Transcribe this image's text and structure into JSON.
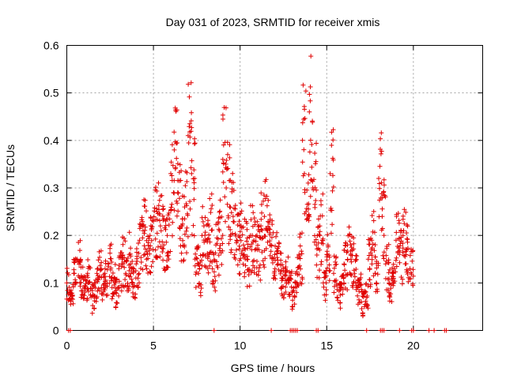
{
  "chart_data": {
    "type": "scatter",
    "title": "Day 031 of 2023, SRMTID for receiver xmis",
    "xlabel": "GPS time / hours",
    "ylabel": "SRMTID / TECUs",
    "xlim": [
      0,
      24
    ],
    "ylim": [
      0,
      0.6
    ],
    "xticks": [
      0,
      5,
      10,
      15,
      20
    ],
    "yticks": [
      0,
      0.1,
      0.2,
      0.3,
      0.4,
      0.5,
      0.6
    ],
    "xtick_labels": [
      "0",
      "5",
      "10",
      "15",
      "20"
    ],
    "ytick_labels": [
      "0",
      "0.1",
      "0.2",
      "0.3",
      "0.4",
      "0.5",
      "0.6"
    ],
    "grid": true,
    "marker": "+",
    "color": "#e00000",
    "points_description": "dense scatter of SRMTID samples; series below are representative envelopes (hour, TECU)",
    "series": [
      {
        "name": "SRMTID",
        "x": [
          0.0,
          0.2,
          0.4,
          0.6,
          0.8,
          1.0,
          1.2,
          1.4,
          1.6,
          1.8,
          2.0,
          2.2,
          2.4,
          2.6,
          2.8,
          3.0,
          3.2,
          3.4,
          3.6,
          3.8,
          4.0,
          4.2,
          4.4,
          4.6,
          4.8,
          5.0,
          5.2,
          5.4,
          5.6,
          5.8,
          6.0,
          6.2,
          6.4,
          6.6,
          6.8,
          7.0,
          7.2,
          7.4,
          7.6,
          7.8,
          8.0,
          8.2,
          8.4,
          8.6,
          8.8,
          9.0,
          9.2,
          9.4,
          9.6,
          9.8,
          10.0,
          10.2,
          10.4,
          10.6,
          10.8,
          11.0,
          11.2,
          11.4,
          11.6,
          11.8,
          12.0,
          12.2,
          12.4,
          12.6,
          12.8,
          13.0,
          13.2,
          13.4,
          13.6,
          13.8,
          14.0,
          14.2,
          14.4,
          14.6,
          14.8,
          15.0,
          15.2,
          15.4,
          15.6,
          15.8,
          16.0,
          16.2,
          16.4,
          16.6,
          16.8,
          17.0,
          17.2,
          17.4,
          17.6,
          17.8,
          18.0,
          18.2,
          18.4,
          18.6,
          18.8,
          19.0,
          19.2,
          19.4,
          19.6,
          19.8
        ],
        "y": [
          0.1,
          0.08,
          0.12,
          0.15,
          0.11,
          0.09,
          0.12,
          0.07,
          0.1,
          0.13,
          0.09,
          0.12,
          0.14,
          0.11,
          0.08,
          0.13,
          0.15,
          0.12,
          0.16,
          0.1,
          0.14,
          0.19,
          0.21,
          0.15,
          0.2,
          0.23,
          0.25,
          0.22,
          0.18,
          0.2,
          0.33,
          0.38,
          0.29,
          0.22,
          0.26,
          0.41,
          0.33,
          0.15,
          0.12,
          0.2,
          0.19,
          0.22,
          0.13,
          0.18,
          0.21,
          0.36,
          0.3,
          0.26,
          0.24,
          0.19,
          0.22,
          0.18,
          0.15,
          0.2,
          0.19,
          0.17,
          0.22,
          0.24,
          0.21,
          0.18,
          0.16,
          0.14,
          0.11,
          0.13,
          0.1,
          0.08,
          0.12,
          0.16,
          0.4,
          0.25,
          0.46,
          0.3,
          0.18,
          0.22,
          0.1,
          0.16,
          0.33,
          0.12,
          0.07,
          0.09,
          0.14,
          0.18,
          0.15,
          0.12,
          0.09,
          0.06,
          0.08,
          0.15,
          0.19,
          0.12,
          0.32,
          0.24,
          0.14,
          0.1,
          0.12,
          0.19,
          0.16,
          0.2,
          0.17,
          0.13
        ],
        "zero_values_x": [
          0.1,
          0.2,
          8.5,
          11.8,
          12.9,
          13.0,
          13.1,
          13.2,
          13.3,
          14.4,
          14.5,
          17.3,
          18.1,
          18.2,
          18.3,
          19.2,
          19.9,
          20.0,
          20.9,
          21.2,
          21.8,
          21.9
        ]
      }
    ]
  }
}
